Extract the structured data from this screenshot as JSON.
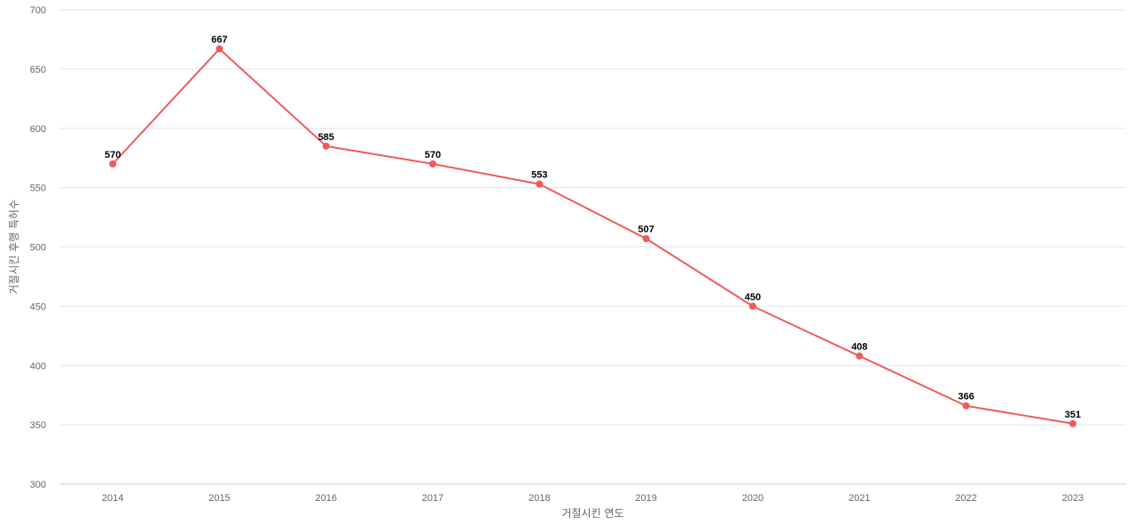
{
  "chart_data": {
    "type": "line",
    "categories": [
      "2014",
      "2015",
      "2016",
      "2017",
      "2018",
      "2019",
      "2020",
      "2021",
      "2022",
      "2023"
    ],
    "series": [
      {
        "values": [
          570,
          667,
          585,
          570,
          553,
          507,
          450,
          408,
          366,
          351
        ],
        "color": "#f05a5a"
      }
    ],
    "xlabel": "거절시킨 연도",
    "ylabel": "거절시킨 후행 특허수",
    "ylim": [
      300,
      700
    ],
    "yticks": [
      300,
      350,
      400,
      450,
      500,
      550,
      600,
      650,
      700
    ],
    "grid": true,
    "data_labels": true,
    "legend": "none"
  }
}
